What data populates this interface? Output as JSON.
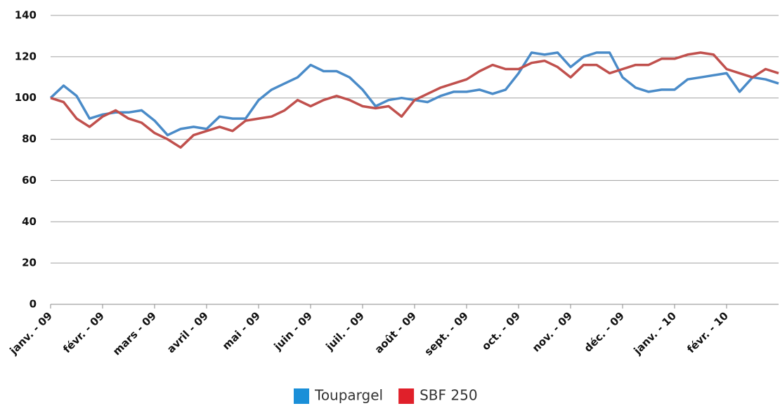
{
  "chart_data": {
    "type": "line",
    "categories": [
      "janv. - 09",
      null,
      null,
      null,
      "févr. - 09",
      null,
      null,
      null,
      "mars - 09",
      null,
      null,
      null,
      "avril - 09",
      null,
      null,
      null,
      "mai - 09",
      null,
      null,
      null,
      "juin - 09",
      null,
      null,
      null,
      "juil. - 09",
      null,
      null,
      null,
      "août - 09",
      null,
      null,
      null,
      "sept. - 09",
      null,
      null,
      null,
      "oct. - 09",
      null,
      null,
      null,
      "nov. - 09",
      null,
      null,
      null,
      "déc. - 09",
      null,
      null,
      null,
      "janv. - 10",
      null,
      null,
      null,
      "févr. - 10",
      null,
      null,
      null,
      null
    ],
    "series": [
      {
        "name": "Toupargel",
        "color": "#4a8bc8",
        "legend_color": "#1a8fd8",
        "values": [
          100,
          106,
          101,
          90,
          92,
          93,
          93,
          94,
          89,
          82,
          85,
          86,
          85,
          91,
          90,
          90,
          99,
          104,
          107,
          110,
          116,
          113,
          113,
          110,
          104,
          96,
          99,
          100,
          99,
          98,
          101,
          103,
          103,
          104,
          102,
          104,
          112,
          122,
          121,
          122,
          115,
          120,
          122,
          122,
          110,
          105,
          103,
          104,
          104,
          109,
          110,
          111,
          112,
          103,
          110,
          109,
          107
        ]
      },
      {
        "name": "SBF 250",
        "color": "#c0504d",
        "legend_color": "#e0202a",
        "values": [
          100,
          98,
          90,
          86,
          91,
          94,
          90,
          88,
          83,
          80,
          76,
          82,
          84,
          86,
          84,
          89,
          90,
          91,
          94,
          99,
          96,
          99,
          101,
          99,
          96,
          95,
          96,
          91,
          99,
          102,
          105,
          107,
          109,
          113,
          116,
          114,
          114,
          117,
          118,
          115,
          110,
          116,
          116,
          112,
          114,
          116,
          116,
          119,
          119,
          121,
          122,
          121,
          114,
          112,
          110,
          114,
          112
        ]
      }
    ],
    "ylim": [
      0,
      140
    ],
    "yticks": [
      0,
      20,
      40,
      60,
      80,
      100,
      120,
      140
    ],
    "grid": true,
    "legend": "bottom"
  }
}
